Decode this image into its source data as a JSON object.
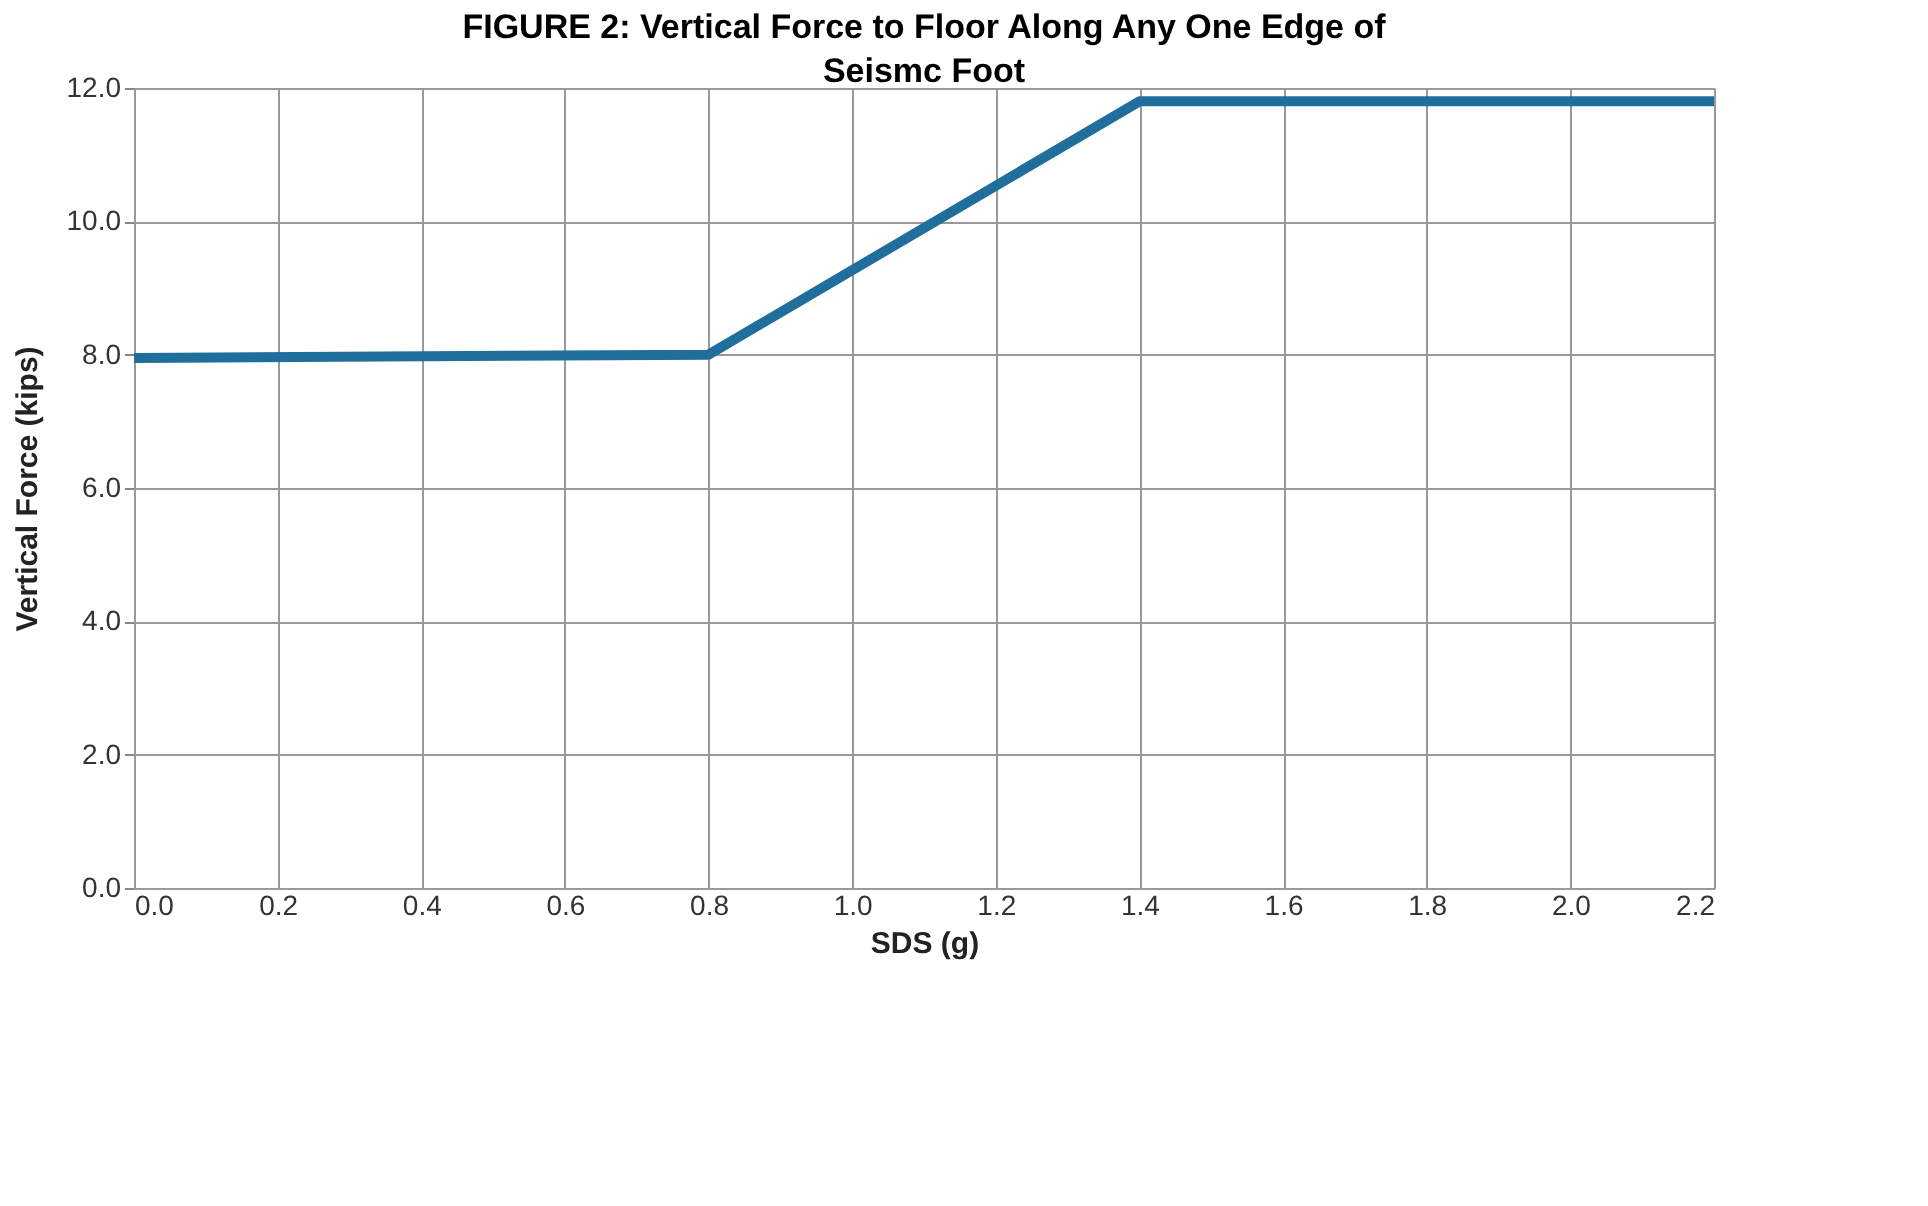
{
  "chart_data": {
    "type": "line",
    "title": "FIGURE 2:  Vertical Force to Floor Along Any One Edge of\nSeismc Foot",
    "xlabel": "SDS (g)",
    "ylabel": "Vertical Force (kips)",
    "x": [
      0.0,
      0.8,
      1.4,
      2.2
    ],
    "series": [
      {
        "color": "#1f6e9c",
        "values": [
          7.95,
          8.0,
          11.8,
          11.8
        ]
      }
    ],
    "xlim": [
      0.0,
      2.2
    ],
    "xticks": [
      {
        "value": 0,
        "label": "0.0"
      },
      {
        "value": 0.2,
        "label": "0.2"
      },
      {
        "value": 0.4,
        "label": "0.4"
      },
      {
        "value": 0.6,
        "label": "0.6"
      },
      {
        "value": 0.8,
        "label": "0.8"
      },
      {
        "value": 1.0,
        "label": "1.0"
      },
      {
        "value": 1.2,
        "label": "1.2"
      },
      {
        "value": 1.4,
        "label": "1.4"
      },
      {
        "value": 1.6,
        "label": "1.6"
      },
      {
        "value": 1.8,
        "label": "1.8"
      },
      {
        "value": 2.0,
        "label": "2.0"
      },
      {
        "value": 2.2,
        "label": "2.2"
      }
    ],
    "ylim": [
      0.0,
      12.0
    ],
    "yticks": [
      {
        "value": 0,
        "label": "0.0"
      },
      {
        "value": 2,
        "label": "2.0"
      },
      {
        "value": 4,
        "label": "4.0"
      },
      {
        "value": 6,
        "label": "6.0"
      },
      {
        "value": 8,
        "label": "8.0"
      },
      {
        "value": 10,
        "label": "10.0"
      },
      {
        "value": 12,
        "label": "12.0"
      }
    ],
    "grid": true,
    "marker": "none",
    "line_style": "solid"
  }
}
